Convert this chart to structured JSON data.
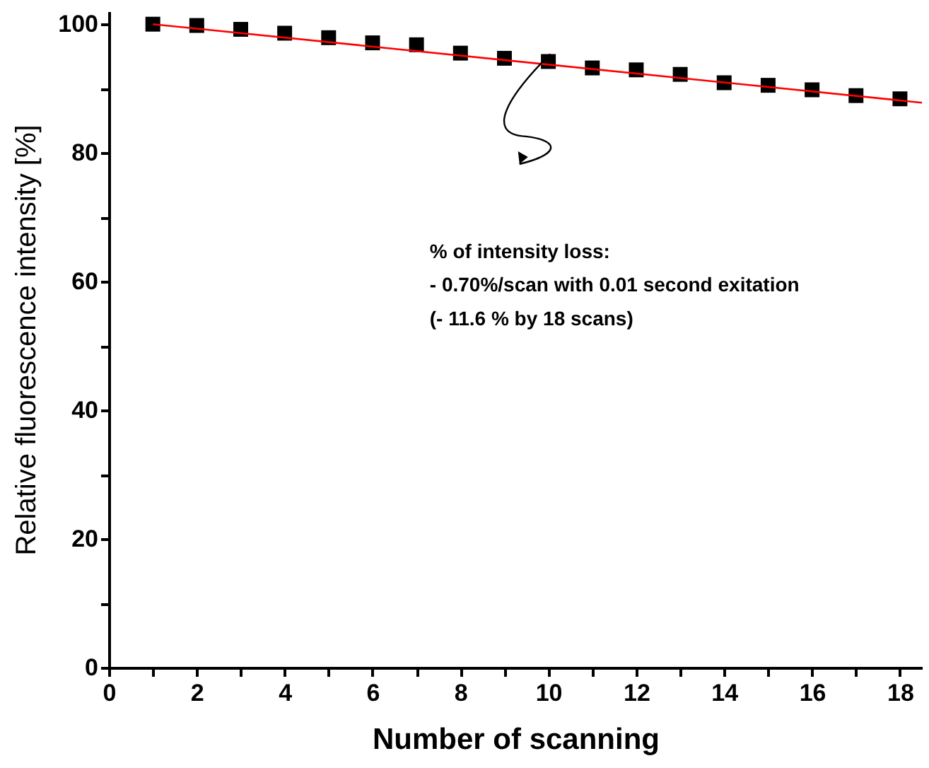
{
  "chart_data": {
    "type": "scatter",
    "xlabel": "Number of scanning",
    "ylabel": "Relative fluorescence intensity [%]",
    "x": [
      1,
      2,
      3,
      4,
      5,
      6,
      7,
      8,
      9,
      10,
      11,
      12,
      13,
      14,
      15,
      16,
      17,
      18
    ],
    "series": [
      {
        "color": "#000000",
        "marker": "square",
        "values": [
          100,
          99.8,
          99.2,
          98.6,
          97.9,
          97.1,
          96.8,
          95.5,
          94.7,
          94.2,
          93.2,
          92.9,
          92.2,
          90.9,
          90.5,
          89.8,
          88.9,
          88.4
        ]
      },
      {
        "type": "line",
        "color": "#ff0000",
        "marker": "none",
        "x": [
          1,
          18.5
        ],
        "values": [
          100,
          87.8
        ]
      }
    ],
    "xlim": [
      0,
      18.5
    ],
    "xticks": [
      0,
      {
        "value": 1,
        "label": null
      },
      2,
      {
        "value": 3,
        "label": null
      },
      4,
      {
        "value": 5,
        "label": null
      },
      6,
      {
        "value": 7,
        "label": null
      },
      8,
      {
        "value": 9,
        "label": null
      },
      10,
      {
        "value": 11,
        "label": null
      },
      12,
      {
        "value": 13,
        "label": null
      },
      14,
      {
        "value": 15,
        "label": null
      },
      16,
      {
        "value": 17,
        "label": null
      },
      18
    ],
    "ylim": [
      0,
      102
    ],
    "yticks": [
      0,
      {
        "value": 10,
        "label": null
      },
      20,
      {
        "value": 30,
        "label": null
      },
      40,
      {
        "value": 50,
        "label": null
      },
      60,
      {
        "value": 70,
        "label": null
      },
      80,
      {
        "value": 90,
        "label": null
      },
      100
    ],
    "grid": false,
    "legend": false,
    "annotations": [
      "% of intensity loss:",
      "   - 0.70%/scan with 0.01 second exitation",
      "(- 11.6 % by 18 scans)"
    ]
  }
}
